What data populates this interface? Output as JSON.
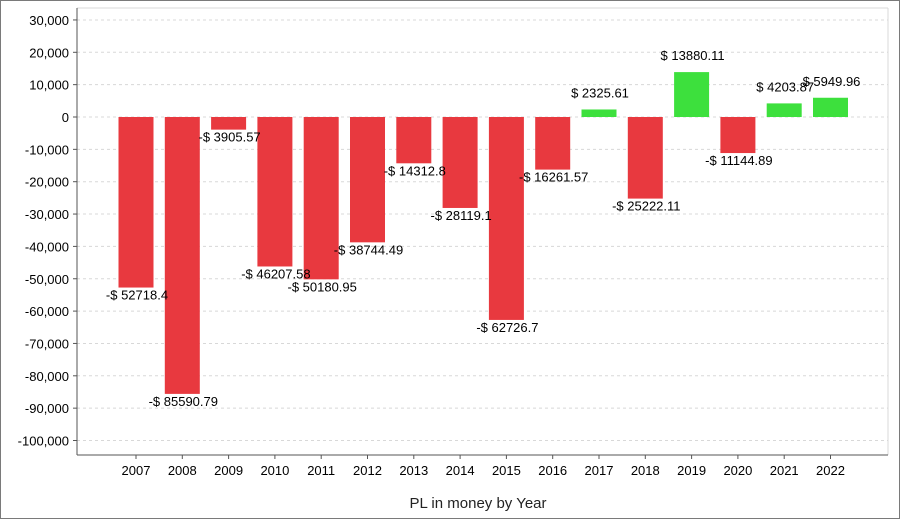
{
  "chart_data": {
    "type": "bar",
    "title": "",
    "xlabel": "PL in money by Year",
    "ylabel": "",
    "categories": [
      "2007",
      "2008",
      "2009",
      "2010",
      "2011",
      "2012",
      "2013",
      "2014",
      "2015",
      "2016",
      "2017",
      "2018",
      "2019",
      "2020",
      "2021",
      "2022"
    ],
    "values": [
      -52718.4,
      -85590.79,
      -3905.57,
      -46207.58,
      -50180.95,
      -38744.49,
      -14312.8,
      -28119.1,
      -62726.7,
      -16261.57,
      2325.61,
      -25222.11,
      13880.11,
      -11144.89,
      4203.87,
      5949.96
    ],
    "data_labels": [
      "-$ 52718.4",
      "-$ 85590.79",
      "-$ 3905.57",
      "-$ 46207.58",
      "-$ 50180.95",
      "-$ 38744.49",
      "-$ 14312.8",
      "-$ 28119.1",
      "-$ 62726.7",
      "-$ 16261.57",
      "$ 2325.61",
      "-$ 25222.11",
      "$ 13880.11",
      "-$ 11144.89",
      "$ 4203.87",
      "$ 5949.96"
    ],
    "ylim": [
      -105000,
      32000
    ],
    "yticks": [
      30000,
      20000,
      10000,
      0,
      -10000,
      -20000,
      -30000,
      -40000,
      -50000,
      -60000,
      -70000,
      -80000,
      -90000,
      -100000
    ],
    "ytick_labels": [
      "30,000",
      "20,000",
      "10,000",
      "0",
      "-10,000",
      "-20,000",
      "-30,000",
      "-40,000",
      "-50,000",
      "-60,000",
      "-70,000",
      "-80,000",
      "-90,000",
      "-100,000"
    ],
    "grid": true,
    "legend": "none",
    "colors": {
      "positive": "#3de03d",
      "negative": "#e8393f",
      "grid": "#d8d8d8",
      "axis": "#555555"
    }
  }
}
